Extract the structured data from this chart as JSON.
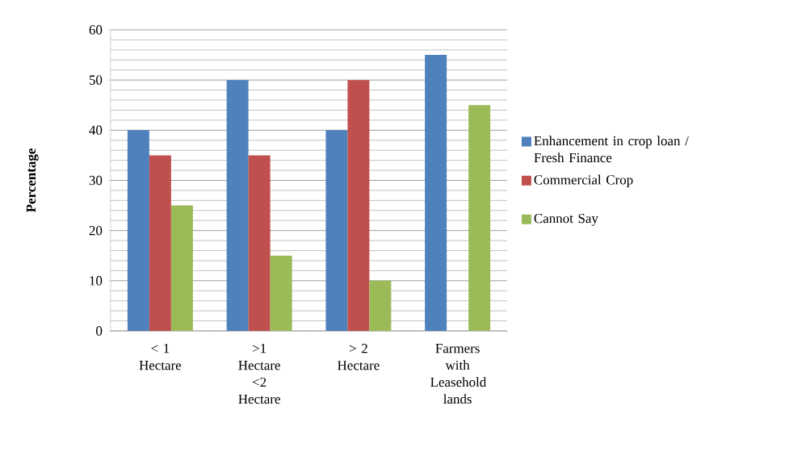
{
  "chart_data": {
    "type": "bar",
    "ylabel": "Percentage",
    "categories": [
      "< 1 Hectare",
      ">1 Hectare <2 Hectare",
      "> 2 Hectare",
      "Farmers with Leasehold lands"
    ],
    "series": [
      {
        "name": "Enhancement in crop loan / Fresh Finance",
        "color": "#4f81bd",
        "values": [
          40,
          50,
          40,
          55
        ]
      },
      {
        "name": "Commercial Crop",
        "color": "#c0504d",
        "values": [
          35,
          35,
          50,
          null
        ]
      },
      {
        "name": "Cannot Say",
        "color": "#9bbb59",
        "values": [
          25,
          15,
          10,
          45
        ]
      }
    ],
    "ylim": [
      0,
      60
    ],
    "yticks": [
      0,
      10,
      20,
      30,
      40,
      50,
      60
    ],
    "grid": "y",
    "legend": "right"
  }
}
